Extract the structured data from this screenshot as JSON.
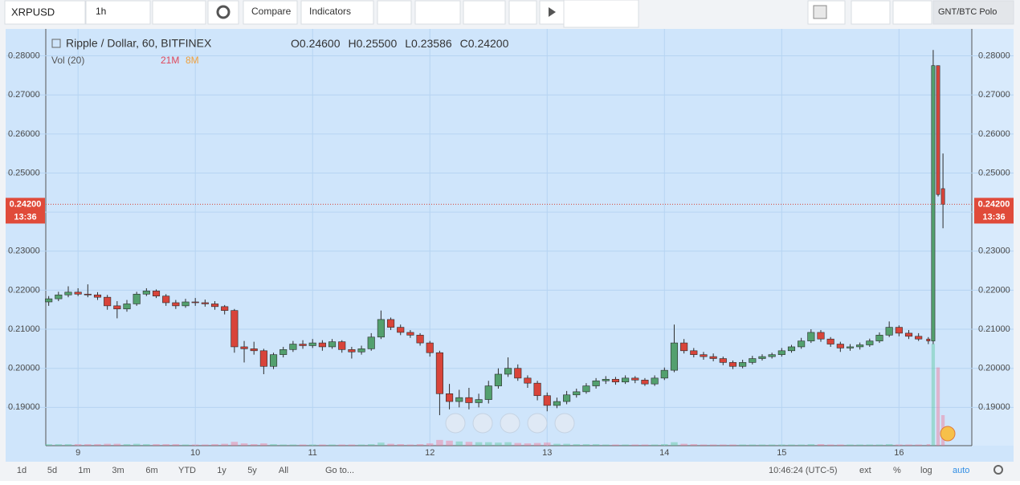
{
  "ui": {
    "symbol": "XRPUSD",
    "interval": "1h",
    "compare": "Compare",
    "indicators": "Indicators",
    "watchlist_symbol": "GNT/BTC Polo",
    "legend": {
      "title": "Ripple / Dollar, 60, BITFINEX",
      "ohlc": [
        {
          "key": "O",
          "value": "0.24600"
        },
        {
          "key": "H",
          "value": "0.25500"
        },
        {
          "key": "L",
          "value": "0.23586"
        },
        {
          "key": "C",
          "value": "0.24200"
        }
      ]
    },
    "volume_legend": {
      "label": "Vol (20)",
      "value": "21M",
      "ma": "8M"
    },
    "price_tag": {
      "price": "0.24200",
      "time": "13:36"
    },
    "ranges": [
      "1d",
      "5d",
      "1m",
      "3m",
      "6m",
      "YTD",
      "1y",
      "5y",
      "All"
    ],
    "goto": "Go to...",
    "clock": "10:46:24 (UTC-5)",
    "ext": "ext",
    "percent": "%",
    "log": "log",
    "auto": "auto"
  },
  "chart_data": {
    "type": "candlestick",
    "up_color": "#53a06e",
    "down_color": "#d8443a",
    "price_line": 0.242,
    "xlim": [
      -6.6,
      182.9
    ],
    "ylim": [
      0.1802,
      0.2869
    ],
    "xticks": [
      {
        "value": 0,
        "label": "9"
      },
      {
        "value": 24,
        "label": "10"
      },
      {
        "value": 48,
        "label": "11"
      },
      {
        "value": 72,
        "label": "12"
      },
      {
        "value": 96,
        "label": "13"
      },
      {
        "value": 120,
        "label": "14"
      },
      {
        "value": 144,
        "label": "15"
      },
      {
        "value": 168,
        "label": "16"
      }
    ],
    "yticks": [
      {
        "value": 0.19,
        "label": "0.19000"
      },
      {
        "value": 0.2,
        "label": "0.20000"
      },
      {
        "value": 0.21,
        "label": "0.21000"
      },
      {
        "value": 0.22,
        "label": "0.22000"
      },
      {
        "value": 0.23,
        "label": "0.23000"
      },
      {
        "value": 0.24,
        "label": "0.24000"
      },
      {
        "value": 0.25,
        "label": "0.25000"
      },
      {
        "value": 0.26,
        "label": "0.26000"
      },
      {
        "value": 0.27,
        "label": "0.27000"
      },
      {
        "value": 0.28,
        "label": "0.28000"
      }
    ],
    "candles": [
      [
        -6,
        0.217,
        0.2185,
        0.216,
        0.2178,
        0.4
      ],
      [
        -4,
        0.2178,
        0.2196,
        0.2172,
        0.2188,
        0.4
      ],
      [
        -2,
        0.2188,
        0.221,
        0.2182,
        0.2195,
        0.4
      ],
      [
        0,
        0.2195,
        0.2205,
        0.2185,
        0.219,
        0.4
      ],
      [
        2,
        0.219,
        0.2215,
        0.2182,
        0.2188,
        0.4
      ],
      [
        4,
        0.2188,
        0.2195,
        0.2175,
        0.2182,
        0.4
      ],
      [
        6,
        0.2182,
        0.2188,
        0.215,
        0.216,
        0.5
      ],
      [
        8,
        0.216,
        0.2172,
        0.2128,
        0.2152,
        0.5
      ],
      [
        10,
        0.2152,
        0.2175,
        0.2145,
        0.2165,
        0.4
      ],
      [
        12,
        0.2165,
        0.2196,
        0.216,
        0.219,
        0.5
      ],
      [
        14,
        0.219,
        0.2205,
        0.2185,
        0.2198,
        0.4
      ],
      [
        16,
        0.2198,
        0.2202,
        0.218,
        0.2185,
        0.4
      ],
      [
        18,
        0.2185,
        0.219,
        0.216,
        0.2168,
        0.4
      ],
      [
        20,
        0.2168,
        0.2175,
        0.2152,
        0.216,
        0.4
      ],
      [
        22,
        0.216,
        0.2178,
        0.2155,
        0.217,
        0.3
      ],
      [
        24,
        0.217,
        0.218,
        0.216,
        0.2168,
        0.3
      ],
      [
        26,
        0.2168,
        0.2176,
        0.2158,
        0.2165,
        0.3
      ],
      [
        28,
        0.2165,
        0.2172,
        0.215,
        0.2158,
        0.4
      ],
      [
        30,
        0.2158,
        0.2162,
        0.2138,
        0.2148,
        0.5
      ],
      [
        32,
        0.2148,
        0.2152,
        0.204,
        0.2055,
        1.0
      ],
      [
        34,
        0.2055,
        0.207,
        0.2015,
        0.205,
        0.6
      ],
      [
        36,
        0.205,
        0.2068,
        0.2035,
        0.2045,
        0.4
      ],
      [
        38,
        0.2045,
        0.205,
        0.1985,
        0.2005,
        0.6
      ],
      [
        40,
        0.2005,
        0.204,
        0.1998,
        0.2035,
        0.4
      ],
      [
        42,
        0.2035,
        0.2055,
        0.2028,
        0.2048,
        0.3
      ],
      [
        44,
        0.2048,
        0.207,
        0.2042,
        0.2062,
        0.3
      ],
      [
        46,
        0.2062,
        0.2072,
        0.205,
        0.2058,
        0.3
      ],
      [
        48,
        0.2058,
        0.2075,
        0.2052,
        0.2065,
        0.3
      ],
      [
        50,
        0.2065,
        0.2072,
        0.2045,
        0.2055,
        0.3
      ],
      [
        52,
        0.2055,
        0.2075,
        0.205,
        0.2068,
        0.3
      ],
      [
        54,
        0.2068,
        0.2072,
        0.204,
        0.2048,
        0.3
      ],
      [
        56,
        0.2048,
        0.2055,
        0.2025,
        0.2042,
        0.3
      ],
      [
        58,
        0.2042,
        0.2058,
        0.2035,
        0.205,
        0.3
      ],
      [
        60,
        0.205,
        0.209,
        0.2045,
        0.208,
        0.4
      ],
      [
        62,
        0.208,
        0.2148,
        0.2075,
        0.2125,
        0.8
      ],
      [
        64,
        0.2125,
        0.213,
        0.2098,
        0.2105,
        0.5
      ],
      [
        66,
        0.2105,
        0.2112,
        0.2085,
        0.2092,
        0.4
      ],
      [
        68,
        0.2092,
        0.2098,
        0.2078,
        0.2085,
        0.3
      ],
      [
        70,
        0.2085,
        0.209,
        0.2058,
        0.2065,
        0.4
      ],
      [
        72,
        0.2065,
        0.207,
        0.203,
        0.204,
        0.6
      ],
      [
        74,
        0.204,
        0.2045,
        0.188,
        0.1935,
        1.5
      ],
      [
        76,
        0.1935,
        0.196,
        0.1895,
        0.1915,
        1.3
      ],
      [
        78,
        0.1915,
        0.1945,
        0.19,
        0.1925,
        1.1
      ],
      [
        80,
        0.1925,
        0.195,
        0.1895,
        0.1912,
        1.0
      ],
      [
        82,
        0.1912,
        0.1935,
        0.19,
        0.192,
        0.9
      ],
      [
        84,
        0.192,
        0.1968,
        0.191,
        0.1955,
        0.9
      ],
      [
        86,
        0.1955,
        0.2,
        0.1948,
        0.1985,
        0.8
      ],
      [
        88,
        0.1985,
        0.2028,
        0.1978,
        0.2,
        0.9
      ],
      [
        90,
        0.2,
        0.201,
        0.1968,
        0.1975,
        0.7
      ],
      [
        92,
        0.1975,
        0.1982,
        0.195,
        0.1962,
        0.6
      ],
      [
        94,
        0.1962,
        0.1968,
        0.1918,
        0.193,
        0.7
      ],
      [
        96,
        0.193,
        0.1938,
        0.189,
        0.1905,
        0.8
      ],
      [
        98,
        0.1905,
        0.1925,
        0.1898,
        0.1915,
        0.5
      ],
      [
        100,
        0.1915,
        0.1942,
        0.1908,
        0.1932,
        0.5
      ],
      [
        102,
        0.1932,
        0.1948,
        0.1925,
        0.194,
        0.4
      ],
      [
        104,
        0.194,
        0.1962,
        0.1935,
        0.1955,
        0.4
      ],
      [
        106,
        0.1955,
        0.1975,
        0.1948,
        0.1968,
        0.4
      ],
      [
        108,
        0.1968,
        0.198,
        0.196,
        0.1972,
        0.3
      ],
      [
        110,
        0.1972,
        0.1978,
        0.1958,
        0.1965,
        0.3
      ],
      [
        112,
        0.1965,
        0.1982,
        0.196,
        0.1975,
        0.3
      ],
      [
        114,
        0.1975,
        0.198,
        0.1962,
        0.197,
        0.3
      ],
      [
        116,
        0.197,
        0.1975,
        0.1955,
        0.196,
        0.3
      ],
      [
        118,
        0.196,
        0.1982,
        0.1955,
        0.1975,
        0.3
      ],
      [
        120,
        0.1975,
        0.2002,
        0.197,
        0.1995,
        0.4
      ],
      [
        122,
        0.1995,
        0.2112,
        0.199,
        0.2065,
        0.9
      ],
      [
        124,
        0.2065,
        0.2075,
        0.2038,
        0.2045,
        0.5
      ],
      [
        126,
        0.2045,
        0.2052,
        0.2028,
        0.2035,
        0.4
      ],
      [
        128,
        0.2035,
        0.2042,
        0.2022,
        0.203,
        0.3
      ],
      [
        130,
        0.203,
        0.2038,
        0.2018,
        0.2025,
        0.3
      ],
      [
        132,
        0.2025,
        0.203,
        0.2008,
        0.2015,
        0.3
      ],
      [
        134,
        0.2015,
        0.202,
        0.1998,
        0.2005,
        0.3
      ],
      [
        136,
        0.2005,
        0.2022,
        0.2,
        0.2015,
        0.3
      ],
      [
        138,
        0.2015,
        0.2032,
        0.201,
        0.2025,
        0.3
      ],
      [
        140,
        0.2025,
        0.2036,
        0.202,
        0.203,
        0.3
      ],
      [
        142,
        0.203,
        0.204,
        0.2025,
        0.2035,
        0.3
      ],
      [
        144,
        0.2035,
        0.2052,
        0.203,
        0.2045,
        0.3
      ],
      [
        146,
        0.2045,
        0.206,
        0.204,
        0.2055,
        0.3
      ],
      [
        148,
        0.2055,
        0.2078,
        0.205,
        0.207,
        0.3
      ],
      [
        150,
        0.207,
        0.21,
        0.2065,
        0.2092,
        0.4
      ],
      [
        152,
        0.2092,
        0.2098,
        0.2068,
        0.2075,
        0.4
      ],
      [
        154,
        0.2075,
        0.208,
        0.2055,
        0.2062,
        0.3
      ],
      [
        156,
        0.2062,
        0.2068,
        0.2042,
        0.2052,
        0.3
      ],
      [
        158,
        0.2052,
        0.2062,
        0.2045,
        0.2055,
        0.3
      ],
      [
        160,
        0.2055,
        0.2066,
        0.2048,
        0.206,
        0.3
      ],
      [
        162,
        0.206,
        0.2076,
        0.2055,
        0.207,
        0.3
      ],
      [
        164,
        0.207,
        0.2092,
        0.2065,
        0.2085,
        0.3
      ],
      [
        166,
        0.2085,
        0.212,
        0.208,
        0.2105,
        0.4
      ],
      [
        168,
        0.2105,
        0.211,
        0.2082,
        0.209,
        0.3
      ],
      [
        170,
        0.209,
        0.2098,
        0.2075,
        0.2082,
        0.3
      ],
      [
        172,
        0.2082,
        0.209,
        0.207,
        0.2075,
        0.3
      ],
      [
        174,
        0.2075,
        0.208,
        0.2062,
        0.207,
        0.4
      ],
      [
        175,
        0.207,
        0.2815,
        0.2062,
        0.2775,
        26.7
      ],
      [
        176,
        0.2775,
        0.2775,
        0.244,
        0.2445,
        20.5
      ],
      [
        177,
        0.246,
        0.255,
        0.23586,
        0.242,
        8
      ]
    ]
  }
}
